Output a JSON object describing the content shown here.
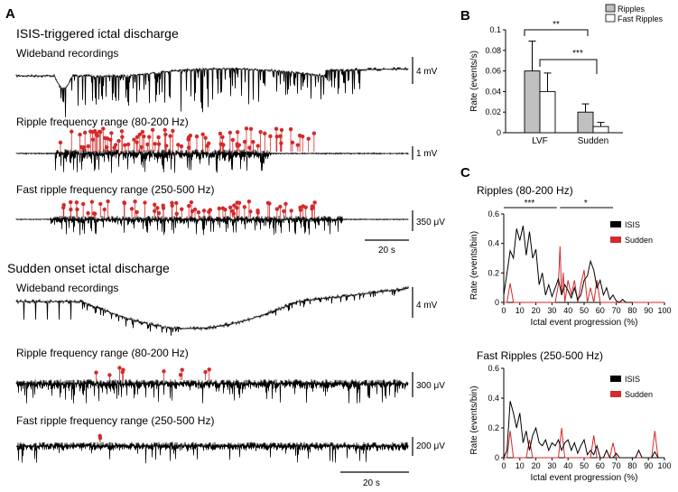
{
  "panels": {
    "a": "A",
    "b": "B",
    "c": "C"
  },
  "section_isis": {
    "title": "ISIS-triggered ictal discharge",
    "traces": [
      {
        "label": "Wideband recordings",
        "scale": "4 mV"
      },
      {
        "label": "Ripple frequency range (80-200 Hz)",
        "scale": "1 mV"
      },
      {
        "label": "Fast ripple frequency range (250-500 Hz)",
        "scale": "350 μV"
      }
    ],
    "time_bar": "20 s"
  },
  "section_sudden": {
    "title": "Sudden onset ictal discharge",
    "traces": [
      {
        "label": "Wideband recordings",
        "scale": "4 mV"
      },
      {
        "label": "Ripple frequency range (80-200 Hz)",
        "scale": "300 μV"
      },
      {
        "label": "Fast ripple frequency range (250-500 Hz)",
        "scale": "200 μV"
      }
    ],
    "time_bar": "20 s"
  },
  "colors": {
    "ripple_marker": "#d42a2a",
    "trace": "#000000",
    "bar_ripples": "#c0c0c0",
    "bar_fast": "#ffffff"
  },
  "chart_data": [
    {
      "id": "B",
      "type": "bar",
      "ylabel": "Rate (events/s)",
      "categories": [
        "LVF",
        "Sudden"
      ],
      "series": [
        {
          "name": "Ripples",
          "values": [
            0.06,
            0.02
          ],
          "errors": [
            0.029,
            0.008
          ]
        },
        {
          "name": "Fast Ripples",
          "values": [
            0.04,
            0.006
          ],
          "errors": [
            0.018,
            0.004
          ]
        }
      ],
      "ylim": [
        0,
        0.1
      ],
      "yticks": [
        "0",
        "0.02",
        "0.04",
        "0.06",
        "0.08",
        "0.1"
      ],
      "yticks_values": [
        0,
        0.02,
        0.04,
        0.06,
        0.08,
        0.1
      ],
      "significance": [
        "**",
        "***"
      ],
      "legend": "top-right"
    },
    {
      "id": "C1",
      "type": "line",
      "title": "Ripples (80-200 Hz)",
      "xlabel": "Ictal event progression (%)",
      "ylabel": "Rate (events/bin)",
      "xlim": [
        0,
        100
      ],
      "ylim": [
        0,
        0.6
      ],
      "xticks": [
        "0",
        "10",
        "20",
        "30",
        "40",
        "50",
        "60",
        "70",
        "80",
        "90",
        "100"
      ],
      "xticks_values": [
        0,
        10,
        20,
        30,
        40,
        50,
        60,
        70,
        80,
        90,
        100
      ],
      "yticks": [
        "0",
        "0.2",
        "0.4",
        "0.6"
      ],
      "yticks_values": [
        0,
        0.2,
        0.4,
        0.6
      ],
      "significance": [
        "***",
        "*"
      ],
      "series": [
        {
          "name": "ISIS",
          "color": "#000000",
          "x": [
            0,
            2,
            4,
            6,
            8,
            10,
            12,
            14,
            16,
            18,
            20,
            22,
            24,
            26,
            28,
            30,
            32,
            34,
            36,
            38,
            40,
            42,
            44,
            46,
            48,
            50,
            52,
            54,
            56,
            58,
            60,
            62,
            64,
            66,
            68,
            70,
            72,
            74,
            76,
            78,
            80
          ],
          "y": [
            0.05,
            0.2,
            0.35,
            0.3,
            0.5,
            0.42,
            0.52,
            0.32,
            0.48,
            0.3,
            0.36,
            0.12,
            0.2,
            0.05,
            0.12,
            0.04,
            0.1,
            0.16,
            0.05,
            0.12,
            0.08,
            0.03,
            0.1,
            0.02,
            0.05,
            0.15,
            0.18,
            0.28,
            0.22,
            0.1,
            0.15,
            0.05,
            0.1,
            0.02,
            0.05,
            0.01,
            0,
            0.02,
            0,
            0,
            0
          ]
        },
        {
          "name": "Sudden",
          "color": "#d42a2a",
          "x": [
            0,
            2,
            4,
            6,
            8,
            10,
            20,
            30,
            32,
            34,
            35,
            36,
            37,
            38,
            40,
            42,
            44,
            46,
            48,
            50,
            52,
            54,
            56,
            58,
            60,
            62,
            70,
            80,
            90,
            100
          ],
          "y": [
            0,
            0,
            0.13,
            0,
            0,
            0,
            0,
            0,
            0,
            0.12,
            0.38,
            0.05,
            0.2,
            0,
            0.15,
            0.05,
            0.15,
            0,
            0.12,
            0.22,
            0,
            0.1,
            0,
            0.15,
            0,
            0,
            0,
            0,
            0,
            0
          ]
        }
      ],
      "legend": "right"
    },
    {
      "id": "C2",
      "type": "line",
      "title": "Fast Ripples (250-500 Hz)",
      "xlabel": "Ictal event progression (%)",
      "ylabel": "Rate (events/bin)",
      "xlim": [
        0,
        100
      ],
      "ylim": [
        0,
        0.6
      ],
      "xticks": [
        "0",
        "10",
        "20",
        "30",
        "40",
        "50",
        "60",
        "70",
        "80",
        "90",
        "100"
      ],
      "xticks_values": [
        0,
        10,
        20,
        30,
        40,
        50,
        60,
        70,
        80,
        90,
        100
      ],
      "yticks": [
        "0",
        "0.2",
        "0.4",
        "0.6"
      ],
      "yticks_values": [
        0,
        0.2,
        0.4,
        0.6
      ],
      "series": [
        {
          "name": "ISIS",
          "color": "#000000",
          "x": [
            0,
            2,
            4,
            6,
            8,
            10,
            12,
            14,
            16,
            18,
            20,
            22,
            24,
            26,
            28,
            30,
            32,
            34,
            36,
            38,
            40,
            42,
            44,
            46,
            48,
            50,
            52,
            54,
            56,
            58,
            60,
            62,
            64,
            66,
            68,
            70,
            72,
            74,
            76,
            78,
            80,
            82,
            84,
            86,
            88,
            90,
            92,
            94,
            96,
            98,
            100
          ],
          "y": [
            0,
            0.05,
            0.38,
            0.3,
            0.2,
            0.3,
            0.1,
            0.18,
            0.05,
            0.15,
            0.2,
            0.1,
            0.08,
            0.12,
            0.05,
            0.1,
            0.08,
            0.12,
            0.05,
            0.1,
            0.12,
            0.05,
            0.1,
            0.03,
            0.08,
            0.12,
            0.02,
            0.05,
            0.02,
            0.08,
            0,
            0,
            0.05,
            0,
            0,
            0.03,
            0,
            0,
            0,
            0,
            0,
            0,
            0.05,
            0,
            0,
            0,
            0,
            0.04,
            0,
            0,
            0
          ]
        },
        {
          "name": "Sudden",
          "color": "#d42a2a",
          "x": [
            0,
            2,
            4,
            6,
            8,
            10,
            12,
            14,
            16,
            18,
            20,
            22,
            24,
            26,
            28,
            30,
            32,
            34,
            36,
            38,
            40,
            42,
            44,
            46,
            48,
            50,
            52,
            54,
            56,
            58,
            60,
            62,
            64,
            66,
            68,
            70,
            72,
            74,
            76,
            78,
            80,
            82,
            84,
            86,
            88,
            90,
            92,
            94,
            96,
            98,
            100
          ],
          "y": [
            0,
            0,
            0.18,
            0,
            0,
            0,
            0,
            0,
            0.12,
            0,
            0,
            0,
            0,
            0,
            0,
            0,
            0,
            0,
            0.2,
            0,
            0,
            0,
            0,
            0,
            0,
            0,
            0,
            0,
            0.15,
            0,
            0,
            0,
            0,
            0,
            0.1,
            0,
            0,
            0,
            0,
            0,
            0,
            0,
            0,
            0,
            0,
            0,
            0,
            0.18,
            0,
            0,
            0
          ]
        }
      ],
      "legend": "right"
    }
  ]
}
